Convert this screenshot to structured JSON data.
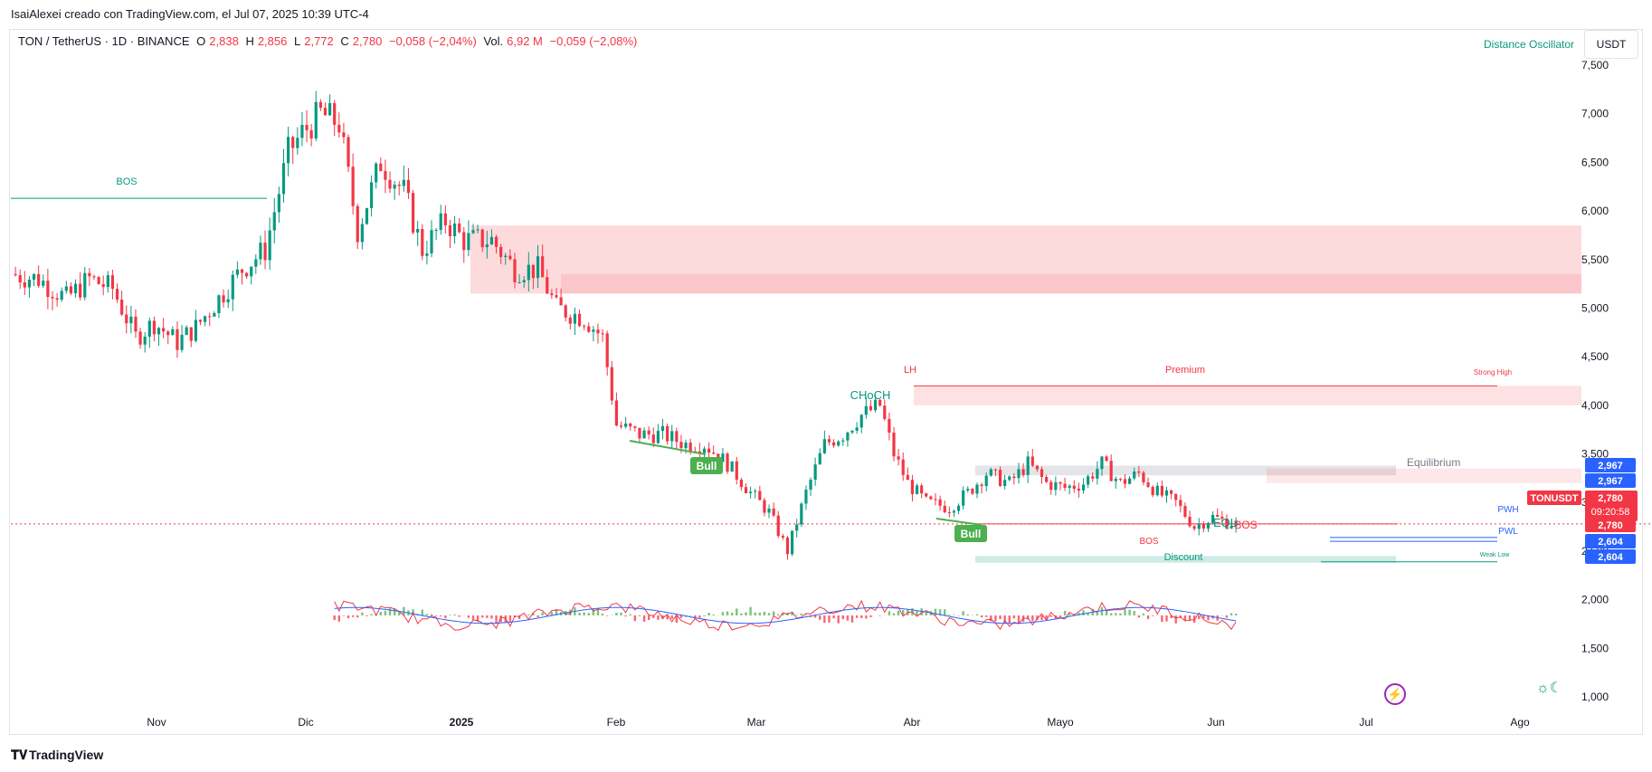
{
  "header": {
    "attribution": "IsaiAlexei creado con TradingView.com, el Jul 07, 2025 10:39 UTC-4",
    "symbol": "TON / TetherUS · 1D · BINANCE",
    "o_label": "O",
    "o_value": "2,838",
    "h_label": "H",
    "h_value": "2,856",
    "l_label": "L",
    "l_value": "2,772",
    "c_label": "C",
    "c_value": "2,780",
    "change": "−0,058 (−2,04%)",
    "vol_label": "Vol.",
    "vol_value": "6,92 M",
    "vol_change": "−0,059 (−2,08%)",
    "indicator": "Distance Oscillator",
    "currency": "USDT"
  },
  "footer": {
    "brand": "TradingView"
  },
  "colors": {
    "up": "#089981",
    "down": "#f23645",
    "green_ind": "#4caf50",
    "blue": "#2962ff",
    "premium": "#f23645"
  },
  "chart_data": {
    "type": "candlestick",
    "y_ticks": [
      "7,500",
      "7,000",
      "6,500",
      "6,000",
      "5,500",
      "5,000",
      "4,500",
      "4,000",
      "3,500",
      "3,000",
      "2,500",
      "2,000",
      "1,500",
      "1,000"
    ],
    "y_tick_values": [
      7.5,
      7.0,
      6.5,
      6.0,
      5.5,
      5.0,
      4.5,
      4.0,
      3.5,
      3.0,
      2.5,
      2.0,
      1.5,
      1.0
    ],
    "x_ticks": [
      "Nov",
      "Dic",
      "2025",
      "Feb",
      "Mar",
      "Abr",
      "Mayo",
      "Jun",
      "Jul",
      "Ago"
    ],
    "close_path": [
      [
        0,
        5.35
      ],
      [
        6,
        5.3
      ],
      [
        12,
        5.1
      ],
      [
        17,
        5.3
      ],
      [
        22,
        5.2
      ],
      [
        27,
        4.7
      ],
      [
        31,
        4.85
      ],
      [
        36,
        4.65
      ],
      [
        40,
        4.8
      ],
      [
        45,
        5.1
      ],
      [
        50,
        5.4
      ],
      [
        55,
        5.6
      ],
      [
        60,
        6.6
      ],
      [
        63,
        6.8
      ],
      [
        67,
        7.0
      ],
      [
        71,
        6.9
      ],
      [
        75,
        5.8
      ],
      [
        80,
        6.5
      ],
      [
        85,
        6.2
      ],
      [
        89,
        5.6
      ],
      [
        94,
        5.9
      ],
      [
        98,
        5.7
      ],
      [
        104,
        5.7
      ],
      [
        109,
        5.4
      ],
      [
        114,
        5.4
      ],
      [
        118,
        5.0
      ],
      [
        124,
        4.9
      ],
      [
        128,
        4.7
      ],
      [
        131,
        3.8
      ],
      [
        136,
        3.7
      ],
      [
        141,
        3.7
      ],
      [
        146,
        3.6
      ],
      [
        150,
        3.6
      ],
      [
        155,
        3.4
      ],
      [
        160,
        3.1
      ],
      [
        164,
        2.9
      ],
      [
        168,
        2.5
      ],
      [
        172,
        3.1
      ],
      [
        176,
        3.6
      ],
      [
        180,
        3.7
      ],
      [
        184,
        3.9
      ],
      [
        188,
        4.0
      ],
      [
        191,
        3.5
      ],
      [
        194,
        3.2
      ],
      [
        198,
        3.0
      ],
      [
        203,
        2.95
      ],
      [
        207,
        3.1
      ],
      [
        211,
        3.3
      ],
      [
        216,
        3.2
      ],
      [
        220,
        3.4
      ],
      [
        224,
        3.2
      ],
      [
        228,
        3.15
      ],
      [
        232,
        3.2
      ],
      [
        236,
        3.4
      ],
      [
        240,
        3.2
      ],
      [
        244,
        3.3
      ],
      [
        248,
        3.1
      ],
      [
        252,
        3.0
      ],
      [
        256,
        2.75
      ],
      [
        260,
        2.85
      ],
      [
        263,
        2.8
      ],
      [
        265,
        2.78
      ]
    ],
    "annotations": {
      "bos_left": "BOS",
      "choch": "CHoCH",
      "lh": "LH",
      "premium": "Premium",
      "strong_high": "Strong High",
      "equilibrium": "Equilibrium",
      "eql": "EQL",
      "bos_mid": "BOS",
      "bos_low": "BOS",
      "discount": "Discount",
      "weak_low": "Weak Low",
      "pwh": "PWH",
      "pwl": "PWL",
      "bull1": "Bull",
      "bull2": "Bull"
    },
    "price_tags": {
      "eq1": "2,967",
      "eq2": "2,967",
      "symbol": "TONUSDT",
      "price": "2,780",
      "countdown": "09:20:58",
      "price2": "2,780",
      "low1": "2,604",
      "low2": "2,604"
    },
    "premium_zone": [
      4.0,
      4.2
    ],
    "equilibrium_zone": [
      3.28,
      3.38
    ],
    "supply_zone_upper": [
      5.15,
      5.85
    ],
    "discount_zone": [
      2.38,
      2.45
    ],
    "pwh": 2.64,
    "pwl": 2.6
  }
}
